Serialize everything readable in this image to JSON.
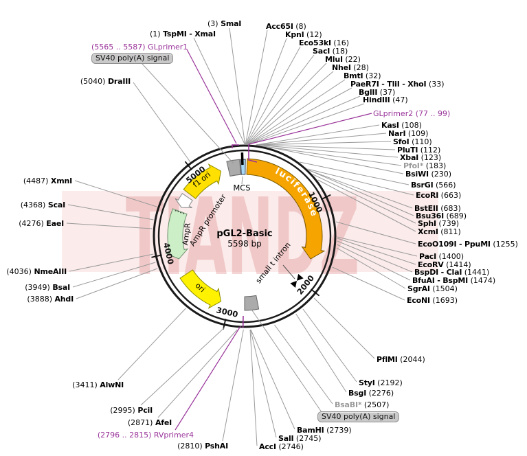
{
  "watermark": "TIANDZ",
  "plasmid": {
    "name": "pGL2-Basic",
    "size": "5598 bp"
  },
  "colors": {
    "luciferase": "#F5A400",
    "f1_ori": "#FFE000",
    "ori": "#FFF200",
    "ampr": "#CDEFC8",
    "ampr_promoter": "#FFFFFF",
    "mcs": "#A6D9F7",
    "signal_box": "#ABABAB",
    "primer": "#993399",
    "backbone": "#1A1A1A",
    "callout_line": "#9A9A9A",
    "label_box_bg": "#C9C9C9"
  },
  "tick_labels": [
    "1000",
    "2000",
    "3000",
    "4000",
    "5000"
  ],
  "features": {
    "luciferase": "luciferase",
    "f1_ori": "f1 ori",
    "ampr_promoter": "AmpR promoter",
    "ampr": "AmpR",
    "ori": "ori",
    "mcs": "MCS",
    "small_t_intron": "small t intron"
  },
  "signals": [
    {
      "label": "SV40 poly(A) signal"
    },
    {
      "label": "SV40 poly(A) signal"
    }
  ],
  "primers": [
    {
      "label": "(5565 .. 5587) GLprimer1"
    },
    {
      "label": "GLprimer2 (77 .. 99)"
    },
    {
      "label": "(2796 .. 2815) RVprimer4"
    }
  ],
  "enzymes": [
    {
      "name": "SmaI",
      "site": "(3)",
      "name_first": false,
      "dim": false
    },
    {
      "name": "TspMI - XmaI",
      "site": "(1)",
      "name_first": false,
      "dim": false
    },
    {
      "name": "DraIII",
      "site": "(5040)",
      "name_first": false,
      "dim": false
    },
    {
      "name": "Acc65I",
      "site": "(8)",
      "name_first": true,
      "dim": false
    },
    {
      "name": "KpnI",
      "site": "(12)",
      "name_first": true,
      "dim": false
    },
    {
      "name": "Eco53kI",
      "site": "(16)",
      "name_first": true,
      "dim": false
    },
    {
      "name": "SacI",
      "site": "(18)",
      "name_first": true,
      "dim": false
    },
    {
      "name": "MluI",
      "site": "(22)",
      "name_first": true,
      "dim": false
    },
    {
      "name": "NheI",
      "site": "(28)",
      "name_first": true,
      "dim": false
    },
    {
      "name": "BmtI",
      "site": "(32)",
      "name_first": true,
      "dim": false
    },
    {
      "name": "PaeR7I - TliI - XhoI",
      "site": "(33)",
      "name_first": true,
      "dim": false
    },
    {
      "name": "BglII",
      "site": "(37)",
      "name_first": true,
      "dim": false
    },
    {
      "name": "HindIII",
      "site": "(47)",
      "name_first": true,
      "dim": false
    },
    {
      "name": "KasI",
      "site": "(108)",
      "name_first": true,
      "dim": false
    },
    {
      "name": "NarI",
      "site": "(109)",
      "name_first": true,
      "dim": false
    },
    {
      "name": "SfoI",
      "site": "(110)",
      "name_first": true,
      "dim": false
    },
    {
      "name": "PluTI",
      "site": "(112)",
      "name_first": true,
      "dim": false
    },
    {
      "name": "XbaI",
      "site": "(123)",
      "name_first": true,
      "dim": false
    },
    {
      "name": "PfoI*",
      "site": "(183)",
      "name_first": true,
      "dim": true
    },
    {
      "name": "BsiWI",
      "site": "(230)",
      "name_first": true,
      "dim": false
    },
    {
      "name": "BsrGI",
      "site": "(566)",
      "name_first": true,
      "dim": false
    },
    {
      "name": "EcoRI",
      "site": "(663)",
      "name_first": true,
      "dim": false
    },
    {
      "name": "BstEII",
      "site": "(683)",
      "name_first": true,
      "dim": false
    },
    {
      "name": "Bsu36I",
      "site": "(689)",
      "name_first": true,
      "dim": false
    },
    {
      "name": "SphI",
      "site": "(739)",
      "name_first": true,
      "dim": false
    },
    {
      "name": "XcmI",
      "site": "(811)",
      "name_first": true,
      "dim": false
    },
    {
      "name": "EcoO109I - PpuMI",
      "site": "(1255)",
      "name_first": true,
      "dim": false
    },
    {
      "name": "PacI",
      "site": "(1400)",
      "name_first": true,
      "dim": false
    },
    {
      "name": "EcoRV",
      "site": "(1414)",
      "name_first": true,
      "dim": false
    },
    {
      "name": "BspDI - ClaI",
      "site": "(1441)",
      "name_first": true,
      "dim": false
    },
    {
      "name": "BfuAI - BspMI",
      "site": "(1474)",
      "name_first": true,
      "dim": false
    },
    {
      "name": "SgrAI",
      "site": "(1504)",
      "name_first": true,
      "dim": false
    },
    {
      "name": "EcoNI",
      "site": "(1693)",
      "name_first": true,
      "dim": false
    },
    {
      "name": "PflMI",
      "site": "(2044)",
      "name_first": true,
      "dim": false
    },
    {
      "name": "StyI",
      "site": "(2192)",
      "name_first": true,
      "dim": false
    },
    {
      "name": "BsgI",
      "site": "(2276)",
      "name_first": true,
      "dim": false
    },
    {
      "name": "BsaBI*",
      "site": "(2507)",
      "name_first": true,
      "dim": true
    },
    {
      "name": "BamHI",
      "site": "(2739)",
      "name_first": true,
      "dim": false
    },
    {
      "name": "SalI",
      "site": "(2745)",
      "name_first": true,
      "dim": false
    },
    {
      "name": "AccI",
      "site": "(2746)",
      "name_first": true,
      "dim": false
    },
    {
      "name": "PshAI",
      "site": "(2810)",
      "name_first": false,
      "dim": false
    },
    {
      "name": "AfeI",
      "site": "(2871)",
      "name_first": false,
      "dim": false
    },
    {
      "name": "PciI",
      "site": "(2995)",
      "name_first": false,
      "dim": false
    },
    {
      "name": "AlwNI",
      "site": "(3411)",
      "name_first": false,
      "dim": false
    },
    {
      "name": "AhdI",
      "site": "(3888)",
      "name_first": false,
      "dim": false
    },
    {
      "name": "BsaI",
      "site": "(3949)",
      "name_first": false,
      "dim": false
    },
    {
      "name": "NmeAIII",
      "site": "(4036)",
      "name_first": false,
      "dim": false
    },
    {
      "name": "EaeI",
      "site": "(4276)",
      "name_first": false,
      "dim": false
    },
    {
      "name": "ScaI",
      "site": "(4368)",
      "name_first": false,
      "dim": false
    },
    {
      "name": "XmnI",
      "site": "(4487)",
      "name_first": false,
      "dim": false
    }
  ]
}
